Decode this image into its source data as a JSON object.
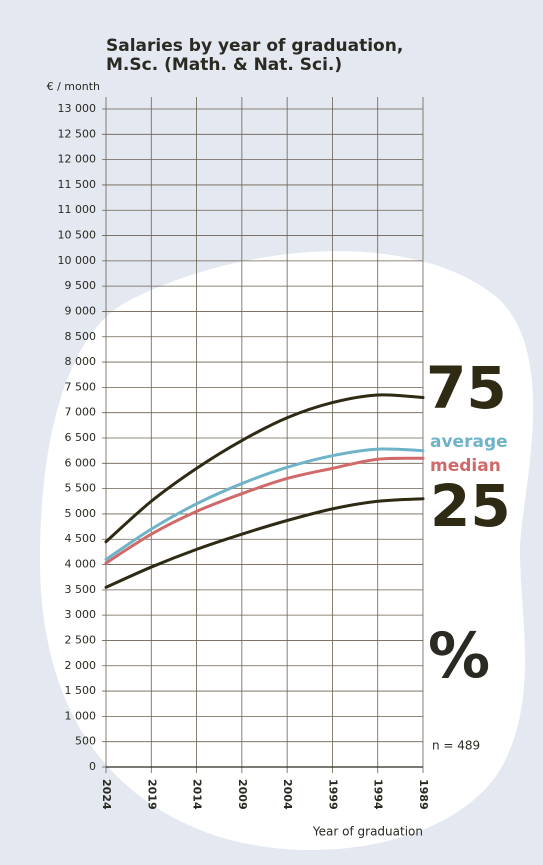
{
  "chart_data": {
    "type": "line",
    "title": [
      "Salaries by year of graduation,",
      "M.Sc. (Math. & Nat. Sci.)"
    ],
    "y_label": "€ / month",
    "x_label": "Year of graduation",
    "x": [
      2024,
      2019,
      2014,
      2009,
      2004,
      1999,
      1994,
      1989
    ],
    "xlim": [
      2024,
      1989
    ],
    "xticks": [
      2024,
      2019,
      2014,
      2009,
      2004,
      1999,
      1994,
      1989
    ],
    "ylim": [
      0,
      13000
    ],
    "yticks": [
      0,
      500,
      {
        "value": 1000,
        "label": "1 000"
      },
      {
        "value": 1500,
        "label": "1 500"
      },
      {
        "value": 2000,
        "label": "2 000"
      },
      {
        "value": 2500,
        "label": "2 500"
      },
      {
        "value": 3000,
        "label": "3 000"
      },
      {
        "value": 3500,
        "label": "3 500"
      },
      {
        "value": 4000,
        "label": "4 000"
      },
      {
        "value": 4500,
        "label": "4 500"
      },
      {
        "value": 5000,
        "label": "5 000"
      },
      {
        "value": 5500,
        "label": "5 500"
      },
      {
        "value": 6000,
        "label": "6 000"
      },
      {
        "value": 6500,
        "label": "6 500"
      },
      {
        "value": 7000,
        "label": "7 000"
      },
      {
        "value": 7500,
        "label": "7 500"
      },
      {
        "value": 8000,
        "label": "8 000"
      },
      {
        "value": 8500,
        "label": "8 500"
      },
      {
        "value": 9000,
        "label": "9 000"
      },
      {
        "value": 9500,
        "label": "9 500"
      },
      {
        "value": 10000,
        "label": "10 000"
      },
      {
        "value": 10500,
        "label": "10 500"
      },
      {
        "value": 11000,
        "label": "11 000"
      },
      {
        "value": 11500,
        "label": "11 500"
      },
      {
        "value": 12000,
        "label": "12 000"
      },
      {
        "value": 12500,
        "label": "12 500"
      },
      {
        "value": 13000,
        "label": "13 000"
      }
    ],
    "grid": true,
    "series": [
      {
        "name": "75",
        "color": "#2e2a14",
        "values": [
          4450,
          5250,
          5900,
          6450,
          6900,
          7200,
          7350,
          7300
        ]
      },
      {
        "name": "average",
        "color": "#6fb3c8",
        "values": [
          4100,
          4700,
          5200,
          5600,
          5920,
          6150,
          6280,
          6250
        ]
      },
      {
        "name": "median",
        "color": "#d06a6a",
        "values": [
          4030,
          4600,
          5050,
          5400,
          5700,
          5900,
          6080,
          6100
        ]
      },
      {
        "name": "25",
        "color": "#2e2a14",
        "values": [
          3550,
          3950,
          4300,
          4600,
          4870,
          5100,
          5250,
          5300
        ]
      }
    ],
    "annotations": [
      "%",
      "n = 489"
    ]
  }
}
